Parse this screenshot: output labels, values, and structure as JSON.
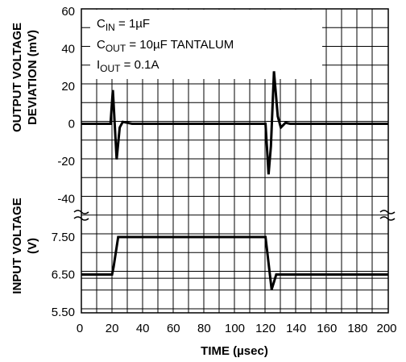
{
  "chart_data": {
    "type": "line",
    "x_axis": {
      "label": "TIME (µsec)",
      "range": [
        0,
        200
      ],
      "ticks": [
        "0",
        "20",
        "40",
        "60",
        "80",
        "100",
        "120",
        "140",
        "160",
        "180",
        "200"
      ]
    },
    "top_panel": {
      "ylabel_line1": "OUTPUT VOLTAGE",
      "ylabel_line2": "DEVIATION (mV)",
      "range": [
        -40,
        60
      ],
      "ticks": [
        "60",
        "40",
        "20",
        "0",
        "-20",
        "-40"
      ],
      "series": [
        {
          "x": [
            0,
            19,
            20.5,
            23,
            25,
            27,
            30,
            33,
            37,
            120,
            122,
            123.5,
            125.5,
            128,
            130,
            133,
            136,
            139,
            200
          ],
          "y": [
            0,
            0,
            18,
            -19,
            -2,
            1,
            0.5,
            0,
            0,
            0,
            -27,
            -12,
            28,
            4,
            -2,
            0.5,
            0,
            0,
            0
          ]
        }
      ]
    },
    "bottom_panel": {
      "ylabel_line1": "INPUT VOLTAGE",
      "ylabel_line2": "(V)",
      "range": [
        5.5,
        7.5
      ],
      "ticks": [
        "7.50",
        "6.50",
        "5.50"
      ],
      "series": [
        {
          "x": [
            0,
            20,
            21,
            24,
            120,
            124,
            125.5,
            127,
            200
          ],
          "y": [
            6.5,
            6.5,
            6.7,
            7.5,
            7.5,
            6.1,
            6.3,
            6.5,
            6.5
          ]
        }
      ],
      "reference_line": 6.4
    },
    "annotations": {
      "cin_main": "C",
      "cin_sub": "IN",
      "cin_rest": " = 1µF",
      "cout_main": "C",
      "cout_sub": "OUT",
      "cout_rest": " = 10µF TANTALUM",
      "iout_main": "I",
      "iout_sub": "OUT",
      "iout_rest": " = 0.1A"
    },
    "grid": true,
    "axis_break_marks": true
  }
}
